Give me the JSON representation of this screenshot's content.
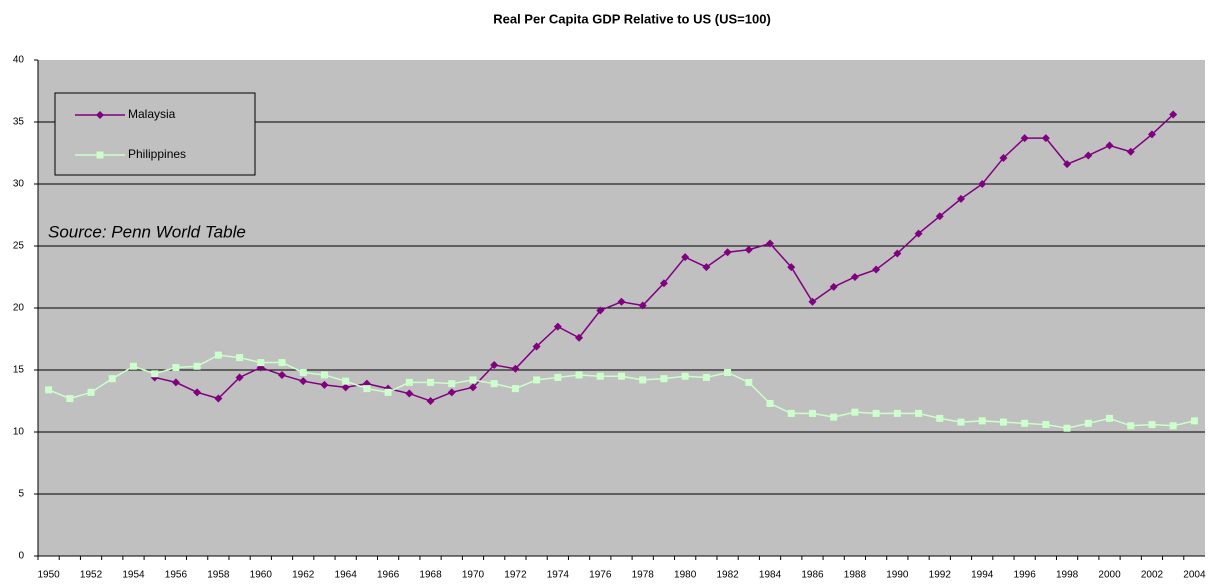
{
  "chart_data": {
    "type": "line",
    "title": "Real Per Capita GDP Relative to US (US=100)",
    "annotation": "Source: Penn World Table",
    "categories": [
      "1950",
      null,
      "1952",
      null,
      "1954",
      null,
      "1956",
      null,
      "1958",
      null,
      "1960",
      null,
      "1962",
      null,
      "1964",
      null,
      "1966",
      null,
      "1968",
      null,
      "1970",
      null,
      "1972",
      null,
      "1974",
      null,
      "1976",
      null,
      "1978",
      null,
      "1980",
      null,
      "1982",
      null,
      "1984",
      null,
      "1986",
      null,
      "1988",
      null,
      "1990",
      null,
      "1992",
      null,
      "1994",
      null,
      "1996",
      null,
      "1998",
      null,
      "2000",
      null,
      "2002",
      null,
      "2004"
    ],
    "series": [
      {
        "name": "Malaysia",
        "color": "#800080",
        "marker": "diamond",
        "values": [
          null,
          null,
          null,
          null,
          null,
          14.4,
          14.0,
          13.2,
          12.7,
          14.4,
          15.2,
          14.6,
          14.1,
          13.8,
          13.6,
          13.9,
          13.5,
          13.1,
          12.5,
          13.2,
          13.6,
          15.4,
          15.1,
          16.9,
          18.5,
          17.6,
          19.8,
          20.5,
          20.2,
          22.0,
          24.1,
          23.3,
          24.5,
          24.7,
          25.2,
          23.3,
          20.5,
          21.7,
          22.5,
          23.1,
          24.4,
          26.0,
          27.4,
          28.8,
          30.0,
          32.1,
          33.7,
          33.7,
          31.6,
          32.3,
          33.1,
          32.6,
          34.0,
          35.6,
          null
        ]
      },
      {
        "name": "Philippines",
        "color": "#ccffcc",
        "marker": "square",
        "values": [
          13.4,
          12.7,
          13.2,
          14.3,
          15.3,
          14.7,
          15.2,
          15.3,
          16.2,
          16.0,
          15.6,
          15.6,
          14.8,
          14.6,
          14.1,
          13.5,
          13.2,
          14.0,
          14.0,
          13.9,
          14.2,
          13.9,
          13.5,
          14.2,
          14.4,
          14.6,
          14.5,
          14.5,
          14.2,
          14.3,
          14.5,
          14.4,
          14.8,
          14.0,
          12.3,
          11.5,
          11.5,
          11.2,
          11.6,
          11.5,
          11.5,
          11.5,
          11.1,
          10.8,
          10.9,
          10.8,
          10.7,
          10.6,
          10.3,
          10.7,
          11.1,
          10.5,
          10.6,
          10.5,
          10.9
        ]
      }
    ],
    "ylim": [
      0,
      40
    ],
    "yticks": [
      0,
      5,
      10,
      15,
      20,
      25,
      30,
      35,
      40
    ],
    "grid": true,
    "legend": "upper left",
    "plot_background": "#c0c0c0"
  }
}
